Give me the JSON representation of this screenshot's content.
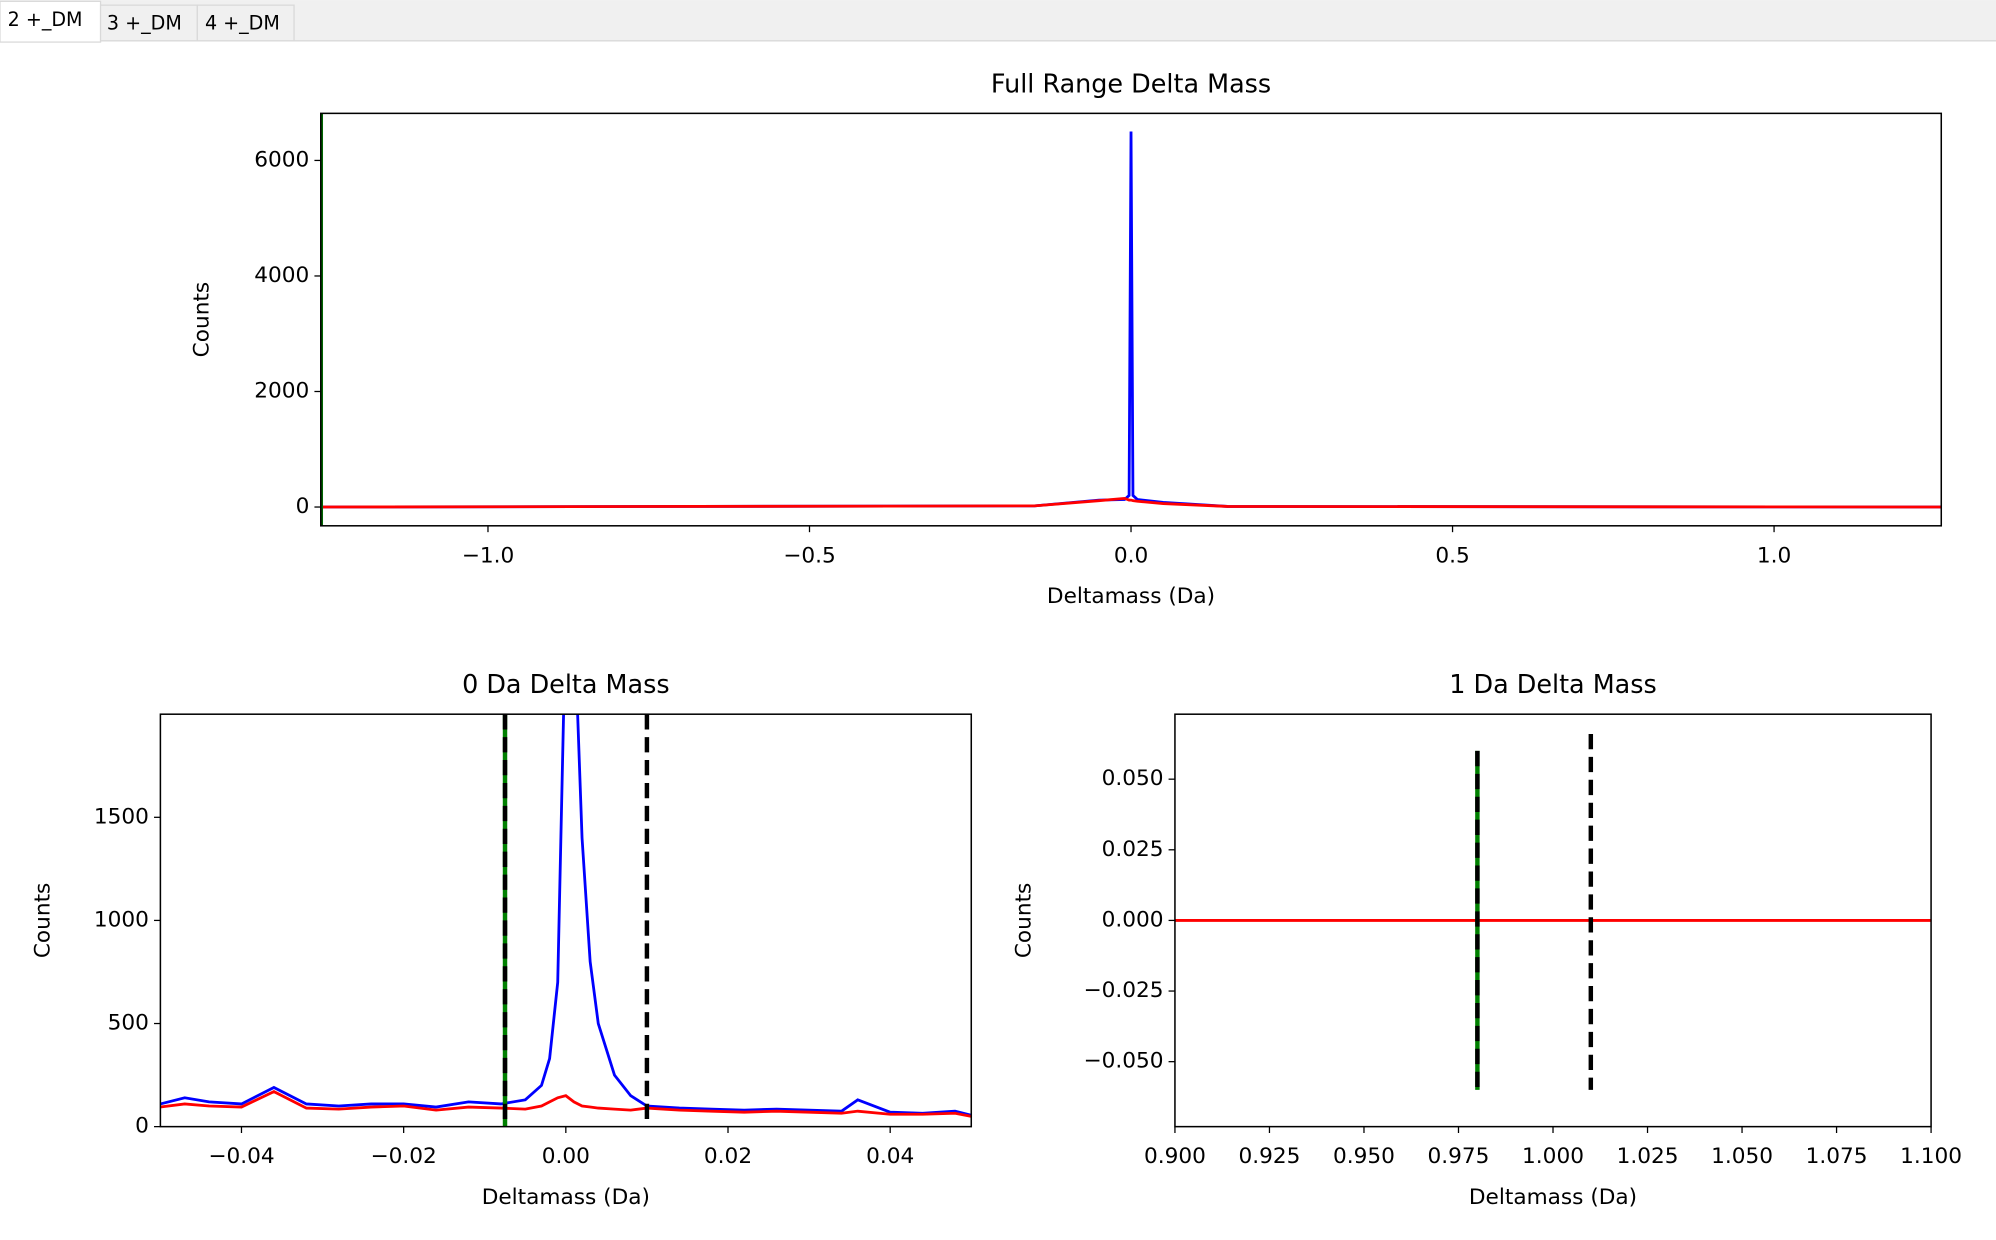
{
  "tabs": [
    "2 +_DM",
    "3 +_DM",
    "4 +_DM"
  ],
  "chart_data": [
    {
      "type": "line",
      "title": "Full Range Delta Mass",
      "xlabel": "Deltamass (Da)",
      "ylabel": "Counts",
      "xlim": [
        -1.26,
        1.26
      ],
      "ylim": [
        -325,
        6815
      ],
      "xticks": [
        {
          "value": -1,
          "label": "−1.0"
        },
        {
          "value": -0.5,
          "label": "−0.5"
        },
        {
          "value": 0,
          "label": "0.0"
        },
        0.5,
        {
          "value": 1,
          "label": "1.0"
        }
      ],
      "yticks": [
        0,
        2000,
        4000,
        6000
      ],
      "series": [
        {
          "color": "#0000ff",
          "x": [
            -1.26,
            -0.15,
            -0.05,
            -0.01,
            -0.003,
            0,
            0.003,
            0.01,
            0.05,
            0.15,
            1.26
          ],
          "values": [
            0,
            20,
            120,
            130,
            200,
            6500,
            200,
            130,
            80,
            10,
            0
          ]
        },
        {
          "color": "#ff0000",
          "x": [
            -1.26,
            -0.15,
            -0.05,
            -0.01,
            -0.003,
            0,
            0.003,
            0.01,
            0.05,
            0.15,
            1.26
          ],
          "values": [
            0,
            20,
            110,
            150,
            120,
            120,
            110,
            100,
            60,
            10,
            0
          ]
        }
      ],
      "vlines": [
        {
          "x": -1.26,
          "color": "#006400"
        }
      ]
    },
    {
      "type": "line",
      "title": "0 Da Delta Mass",
      "xlabel": "Deltamass (Da)",
      "ylabel": "Counts",
      "xlim": [
        -0.05,
        0.05
      ],
      "ylim": [
        0,
        2000
      ],
      "xticks": [
        {
          "value": -0.04,
          "label": "−0.04"
        },
        {
          "value": -0.02,
          "label": "−0.02"
        },
        {
          "value": 0,
          "label": "0.00"
        },
        0.02,
        0.04
      ],
      "yticks": [
        0,
        500,
        1000,
        1500
      ],
      "series": [
        {
          "color": "#0000ff",
          "x": [
            -0.05,
            -0.047,
            -0.044,
            -0.04,
            -0.036,
            -0.032,
            -0.028,
            -0.024,
            -0.02,
            -0.016,
            -0.012,
            -0.008,
            -0.005,
            -0.003,
            -0.002,
            -0.001,
            0,
            0.001,
            0.002,
            0.003,
            0.004,
            0.006,
            0.008,
            0.01,
            0.014,
            0.018,
            0.022,
            0.026,
            0.03,
            0.034,
            0.036,
            0.04,
            0.044,
            0.048,
            0.05
          ],
          "values": [
            110,
            140,
            120,
            110,
            190,
            110,
            100,
            110,
            110,
            95,
            120,
            110,
            130,
            200,
            330,
            700,
            2500,
            2500,
            1400,
            800,
            500,
            250,
            150,
            100,
            90,
            85,
            80,
            85,
            80,
            75,
            130,
            70,
            65,
            75,
            55
          ]
        },
        {
          "color": "#ff0000",
          "x": [
            -0.05,
            -0.047,
            -0.044,
            -0.04,
            -0.036,
            -0.032,
            -0.028,
            -0.024,
            -0.02,
            -0.016,
            -0.012,
            -0.008,
            -0.005,
            -0.003,
            -0.002,
            -0.001,
            0,
            0.001,
            0.002,
            0.003,
            0.004,
            0.006,
            0.008,
            0.01,
            0.014,
            0.018,
            0.022,
            0.026,
            0.03,
            0.034,
            0.036,
            0.04,
            0.044,
            0.048,
            0.05
          ],
          "values": [
            95,
            110,
            100,
            95,
            170,
            90,
            85,
            95,
            100,
            80,
            95,
            90,
            85,
            100,
            120,
            140,
            150,
            120,
            100,
            95,
            90,
            85,
            80,
            90,
            80,
            75,
            70,
            75,
            70,
            65,
            75,
            60,
            60,
            65,
            50
          ]
        }
      ],
      "vlines": [
        {
          "x": -0.0075,
          "color": "#000000",
          "underlay": "#008000"
        },
        {
          "x": 0.01,
          "color": "#000000"
        }
      ]
    },
    {
      "type": "line",
      "title": "1 Da Delta Mass",
      "xlabel": "Deltamass (Da)",
      "ylabel": "Counts",
      "xlim": [
        0.9,
        1.1
      ],
      "ylim": [
        -0.073,
        0.073
      ],
      "xticks": [
        {
          "value": 0.9,
          "label": "0.900"
        },
        0.925,
        {
          "value": 0.95,
          "label": "0.950"
        },
        0.975,
        {
          "value": 1,
          "label": "1.000"
        },
        1.025,
        {
          "value": 1.05,
          "label": "1.050"
        },
        1.075,
        {
          "value": 1.1,
          "label": "1.100"
        }
      ],
      "yticks": [
        {
          "value": -0.05,
          "label": "−0.050"
        },
        {
          "value": -0.025,
          "label": "−0.025"
        },
        {
          "value": 0,
          "label": "0.000"
        },
        {
          "value": 0.025,
          "label": "0.025"
        },
        {
          "value": 0.05,
          "label": "0.050"
        }
      ],
      "series": [
        {
          "color": "#ff0000",
          "x": [
            0.9,
            1.1
          ],
          "values": [
            0,
            0
          ]
        }
      ],
      "vlines": [
        {
          "x": 0.98,
          "ymin": -0.06,
          "ymax": 0.06,
          "color": "#000000",
          "underlay": "#008000"
        },
        {
          "x": 1.01,
          "ymin": -0.06,
          "ymax": 0.066,
          "color": "#000000"
        }
      ]
    }
  ]
}
